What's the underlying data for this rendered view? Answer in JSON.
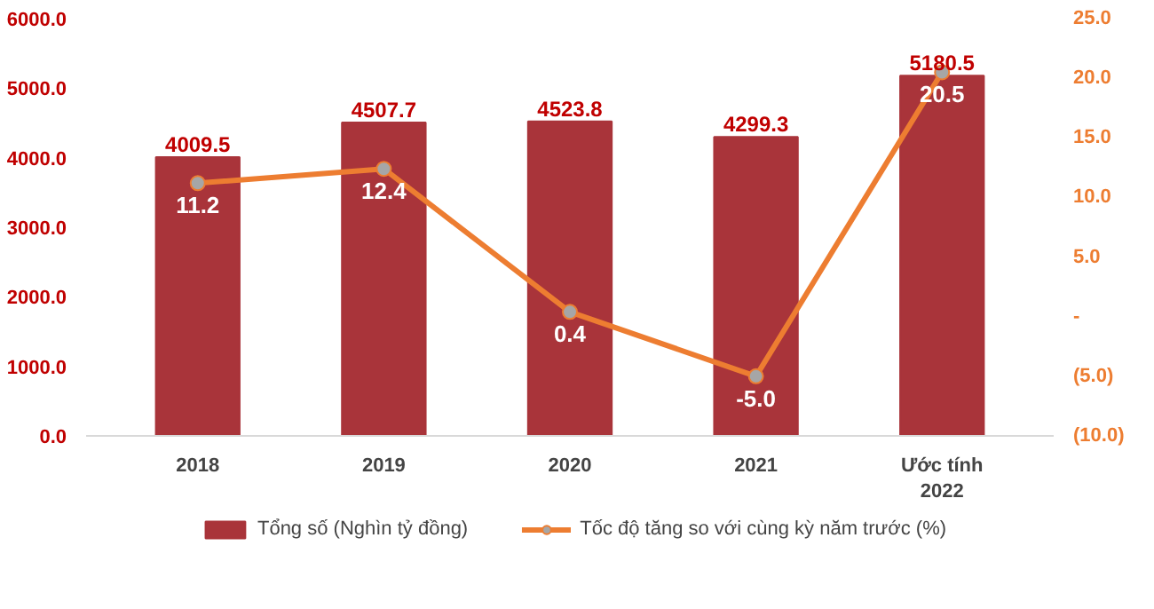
{
  "chart_data": {
    "type": "bar",
    "categories": [
      "2018",
      "2019",
      "2020",
      "2021",
      "Ước tính\n2022"
    ],
    "series": [
      {
        "name": "Tổng số (Nghìn tỷ đồng)",
        "color": "#a9343a",
        "values": [
          4009.5,
          4507.7,
          4523.8,
          4299.3,
          5180.5
        ],
        "value_labels": [
          "4009.5",
          "4507.7",
          "4523.8",
          "4299.3",
          "5180.5"
        ]
      },
      {
        "name": "Tốc độ tăng so với cùng kỳ năm trước (%)",
        "type": "line",
        "axis": "y2",
        "color": "#ed7d31",
        "values": [
          11.2,
          12.4,
          0.4,
          -5.0,
          20.5
        ],
        "value_labels": [
          "11.2",
          "12.4",
          "0.4",
          "-5.0",
          "20.5"
        ]
      }
    ],
    "ylim": [
      0,
      6000
    ],
    "yticks": [
      {
        "value": 0,
        "label": "0.0"
      },
      {
        "value": 1000,
        "label": "1000.0"
      },
      {
        "value": 2000,
        "label": "2000.0"
      },
      {
        "value": 3000,
        "label": "3000.0"
      },
      {
        "value": 4000,
        "label": "4000.0"
      },
      {
        "value": 5000,
        "label": "5000.0"
      },
      {
        "value": 6000,
        "label": "6000.0"
      }
    ],
    "y2lim": [
      -10,
      25
    ],
    "y2ticks": [
      {
        "value": -10,
        "label": "(10.0)"
      },
      {
        "value": -5,
        "label": "(5.0)"
      },
      {
        "value": 0,
        "label": "-"
      },
      {
        "value": 5,
        "label": "5.0"
      },
      {
        "value": 10,
        "label": "10.0"
      },
      {
        "value": 15,
        "label": "15.0"
      },
      {
        "value": 20,
        "label": "20.0"
      },
      {
        "value": 25,
        "label": "25.0"
      }
    ],
    "marker": "circle",
    "legend": "bottom"
  }
}
